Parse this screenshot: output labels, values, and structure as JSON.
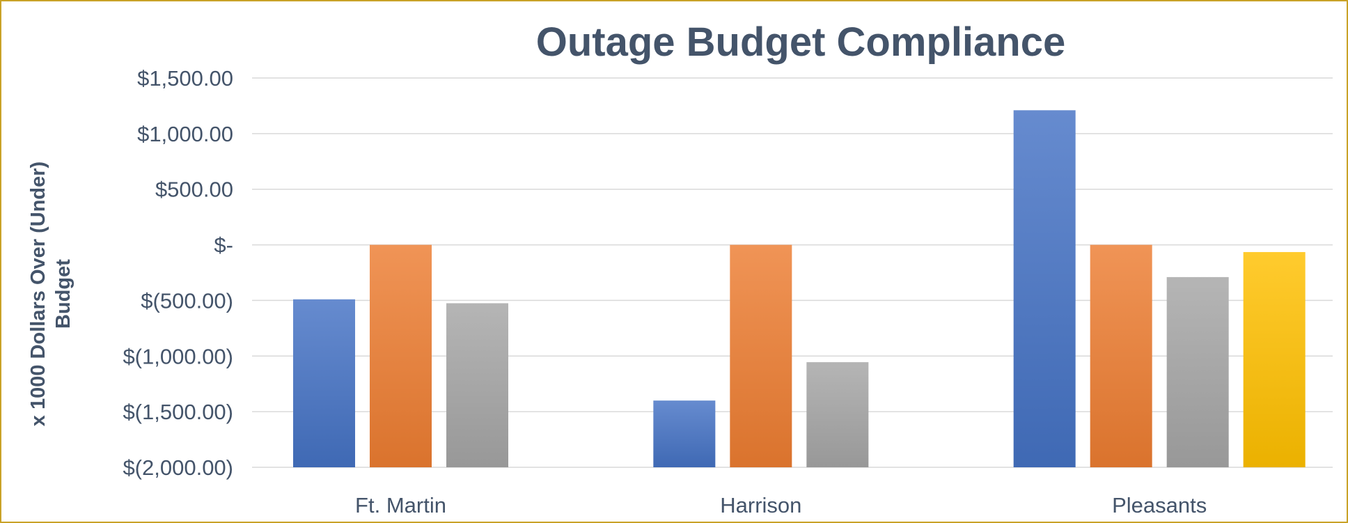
{
  "chart_data": {
    "type": "bar",
    "title": "Outage Budget Compliance",
    "ylabel": [
      "x 1000 Dollars Over (Under)",
      "Budget"
    ],
    "xlabel": "",
    "categories": [
      "Ft. Martin",
      "Harrison",
      "Pleasants"
    ],
    "ylim": [
      -2000,
      1500
    ],
    "yticks": [
      1500,
      1000,
      500,
      0,
      -500,
      -1000,
      -1500,
      -2000
    ],
    "ytick_labels": [
      "$1,500.00",
      "$1,000.00",
      "$500.00",
      "$-",
      "$(500.00)",
      "$(1,000.00)",
      "$(1,500.00)",
      "$(2,000.00)"
    ],
    "grid": true,
    "legend": "none",
    "series": [
      {
        "color": "#4472c4",
        "values": [
          -490,
          -1400,
          1210
        ]
      },
      {
        "color": "#ed7d31",
        "values": [
          0,
          0,
          0
        ]
      },
      {
        "color": "#a5a5a5",
        "values": [
          -525,
          -1055,
          -290
        ]
      },
      {
        "color": "#ffc000",
        "values": [
          null,
          null,
          -65
        ]
      }
    ]
  }
}
